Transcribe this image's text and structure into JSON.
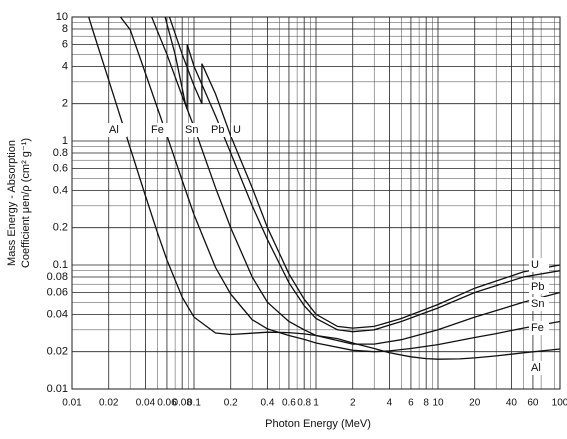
{
  "chart_data": {
    "type": "line",
    "xlabel": "Photon Energy (MeV)",
    "ylabel": [
      "Mass Energy - Absorption",
      "Coefficient μen/ρ (cm² g⁻¹)"
    ],
    "xscale": "log",
    "yscale": "log",
    "grid": true,
    "xlim": [
      0.01,
      100
    ],
    "ylim": [
      0.01,
      10
    ],
    "xticks": [
      0.01,
      0.02,
      0.04,
      0.06,
      0.08,
      0.1,
      0.2,
      0.4,
      0.6,
      0.8,
      1,
      2,
      4,
      6,
      8,
      10,
      20,
      40,
      60,
      100
    ],
    "yticks": [
      0.01,
      0.02,
      0.04,
      0.06,
      0.08,
      0.1,
      0.2,
      0.4,
      0.6,
      0.8,
      1,
      2,
      4,
      6,
      8,
      10
    ],
    "series": [
      {
        "name": "Al",
        "color": "#111111",
        "x": [
          0.0137,
          0.015,
          0.02,
          0.03,
          0.04,
          0.05,
          0.06,
          0.08,
          0.1,
          0.15,
          0.2,
          0.3,
          0.4,
          0.6,
          0.8,
          1,
          1.5,
          2,
          3,
          4,
          6,
          8,
          10,
          15,
          20,
          30,
          50,
          100
        ],
        "values": [
          10,
          7.5,
          3.1,
          0.88,
          0.36,
          0.184,
          0.11,
          0.055,
          0.038,
          0.0283,
          0.0275,
          0.0282,
          0.0287,
          0.0285,
          0.0278,
          0.027,
          0.0255,
          0.0235,
          0.0212,
          0.0196,
          0.0182,
          0.0176,
          0.0174,
          0.0175,
          0.0178,
          0.0185,
          0.0196,
          0.021
        ]
      },
      {
        "name": "Fe",
        "color": "#111111",
        "x": [
          0.025,
          0.03,
          0.04,
          0.05,
          0.06,
          0.08,
          0.1,
          0.15,
          0.2,
          0.3,
          0.4,
          0.6,
          0.8,
          1,
          2,
          3,
          4,
          6,
          10,
          20,
          30,
          50,
          100
        ],
        "values": [
          10,
          7.9,
          3.5,
          1.86,
          1.11,
          0.48,
          0.255,
          0.0956,
          0.0583,
          0.0362,
          0.0305,
          0.027,
          0.0251,
          0.0235,
          0.0205,
          0.02,
          0.0203,
          0.0212,
          0.0228,
          0.026,
          0.028,
          0.031,
          0.035
        ]
      },
      {
        "name": "Sn",
        "color": "#111111",
        "x": [
          0.045,
          0.06,
          0.08,
          0.1,
          0.15,
          0.2,
          0.3,
          0.4,
          0.6,
          0.8,
          1,
          2,
          3,
          5,
          10,
          20,
          50,
          100
        ],
        "values": [
          10,
          5,
          2.3,
          1.3,
          0.42,
          0.2,
          0.08,
          0.05,
          0.035,
          0.03,
          0.027,
          0.023,
          0.023,
          0.025,
          0.03,
          0.038,
          0.05,
          0.06
        ]
      },
      {
        "name": "Pb",
        "color": "#111111",
        "x": [
          0.058,
          0.07,
          0.085,
          0.088,
          0.088,
          0.1,
          0.15,
          0.2,
          0.3,
          0.4,
          0.6,
          0.8,
          1,
          1.5,
          2,
          3,
          5,
          10,
          20,
          50,
          100
        ],
        "values": [
          10,
          5,
          2,
          1.8,
          6,
          4,
          1.6,
          0.8,
          0.3,
          0.16,
          0.072,
          0.047,
          0.037,
          0.03,
          0.029,
          0.03,
          0.035,
          0.045,
          0.06,
          0.08,
          0.09
        ]
      },
      {
        "name": "U",
        "color": "#111111",
        "x": [
          0.063,
          0.08,
          0.1,
          0.116,
          0.116,
          0.15,
          0.2,
          0.3,
          0.4,
          0.6,
          0.8,
          1,
          1.5,
          2,
          3,
          5,
          10,
          20,
          50,
          100
        ],
        "values": [
          10,
          5,
          2.8,
          2,
          4.2,
          2.4,
          1.1,
          0.42,
          0.2,
          0.085,
          0.053,
          0.04,
          0.032,
          0.031,
          0.032,
          0.037,
          0.048,
          0.065,
          0.088,
          0.1
        ]
      }
    ]
  }
}
